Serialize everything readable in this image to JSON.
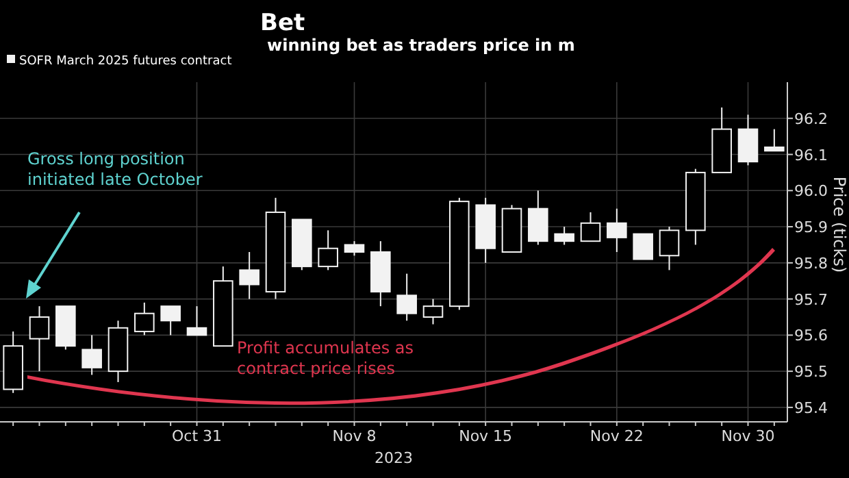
{
  "chart_data": {
    "type": "candlestick",
    "title": "Bet",
    "subtitle": "winning bet as traders price in m",
    "xlabel": "2023",
    "ylabel": "Price (ticks)",
    "categories": [
      null,
      null,
      null,
      null,
      null,
      null,
      null,
      "Oct 31",
      null,
      null,
      null,
      null,
      null,
      "Nov 8",
      null,
      null,
      null,
      null,
      "Nov 15",
      null,
      null,
      null,
      null,
      "Nov 22",
      null,
      null,
      null,
      null,
      "Nov 30",
      null
    ],
    "series": [
      {
        "name": "SOFR March 2025 futures contract",
        "color": "#f2f2f2",
        "ohlc": [
          [
            95.45,
            95.61,
            95.44,
            95.57
          ],
          [
            95.59,
            95.68,
            95.5,
            95.65
          ],
          [
            95.68,
            95.68,
            95.56,
            95.57
          ],
          [
            95.56,
            95.6,
            95.49,
            95.51
          ],
          [
            95.5,
            95.64,
            95.47,
            95.62
          ],
          [
            95.61,
            95.69,
            95.6,
            95.66
          ],
          [
            95.68,
            95.68,
            95.6,
            95.64
          ],
          [
            95.62,
            95.68,
            95.6,
            95.6
          ],
          [
            95.57,
            95.79,
            95.57,
            95.75
          ],
          [
            95.78,
            95.83,
            95.7,
            95.74
          ],
          [
            95.72,
            95.98,
            95.7,
            95.94
          ],
          [
            95.92,
            95.92,
            95.78,
            95.79
          ],
          [
            95.79,
            95.89,
            95.78,
            95.84
          ],
          [
            95.85,
            95.86,
            95.82,
            95.83
          ],
          [
            95.83,
            95.86,
            95.68,
            95.72
          ],
          [
            95.71,
            95.77,
            95.64,
            95.66
          ],
          [
            95.65,
            95.7,
            95.63,
            95.68
          ],
          [
            95.68,
            95.98,
            95.67,
            95.97
          ],
          [
            95.96,
            95.98,
            95.8,
            95.84
          ],
          [
            95.83,
            95.96,
            95.83,
            95.95
          ],
          [
            95.95,
            96.0,
            95.85,
            95.86
          ],
          [
            95.88,
            95.9,
            95.85,
            95.86
          ],
          [
            95.86,
            95.94,
            95.86,
            95.91
          ],
          [
            95.91,
            95.95,
            95.83,
            95.87
          ],
          [
            95.88,
            95.88,
            95.81,
            95.81
          ],
          [
            95.82,
            95.9,
            95.78,
            95.89
          ],
          [
            95.89,
            96.06,
            95.85,
            96.05
          ],
          [
            96.05,
            96.23,
            96.05,
            96.17
          ],
          [
            96.17,
            96.21,
            96.07,
            96.08
          ],
          [
            96.12,
            96.17,
            96.11,
            96.11
          ]
        ]
      }
    ],
    "ylim": [
      95.36,
      96.3
    ],
    "yticks": [
      95.4,
      95.5,
      95.6,
      95.7,
      95.8,
      95.9,
      {
        "value": 96.0,
        "label": "96.0"
      },
      96.1,
      96.2
    ],
    "grid": true,
    "legend": "top left",
    "annotations": [
      "Gross long position initiated late October",
      "Profit accumulates as contract price rises"
    ]
  }
}
